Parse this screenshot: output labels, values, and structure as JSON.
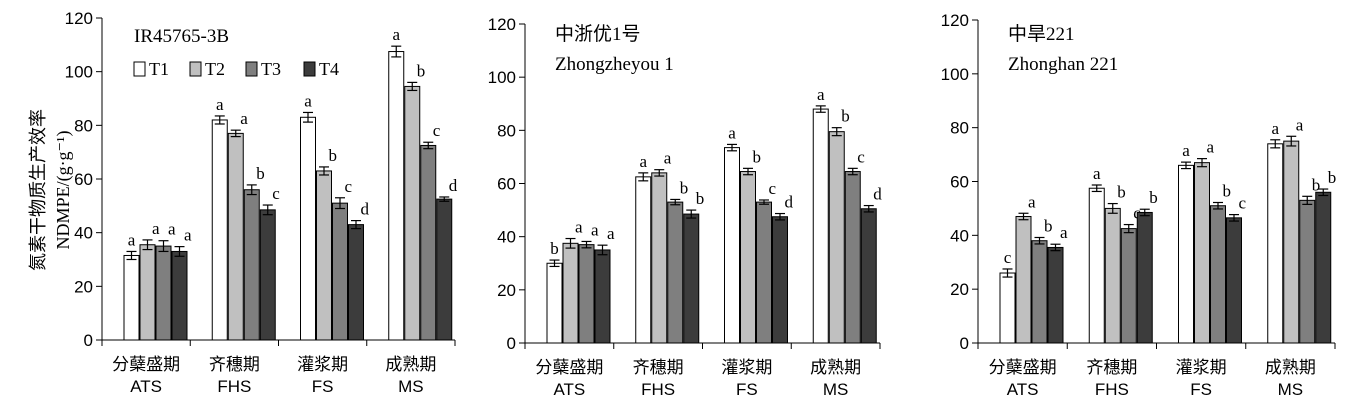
{
  "figure": {
    "y_axis_label_cn": "氮素干物质生产效率",
    "y_axis_label_en": "NDMPE/(g·g⁻¹)",
    "legend": [
      "T1",
      "T2",
      "T3",
      "T4"
    ],
    "colors": {
      "T1": "#ffffff",
      "T2": "#c0c0c0",
      "T3": "#7f7f7f",
      "T4": "#3c3c3c"
    }
  },
  "chart_data": [
    {
      "type": "bar",
      "title": "IR45765-3B",
      "subtitle": "",
      "categories_cn": [
        "分蘖盛期",
        "齐穗期",
        "灌浆期",
        "成熟期"
      ],
      "categories": [
        "ATS",
        "FHS",
        "FS",
        "MS"
      ],
      "ylim": [
        0,
        120
      ],
      "yticks": [
        0,
        20,
        40,
        60,
        80,
        100,
        120
      ],
      "series": [
        {
          "name": "T1",
          "values": [
            31.5,
            82,
            83,
            107.5
          ],
          "errors": [
            1.5,
            1.5,
            1.8,
            2.0
          ],
          "labels": [
            "a",
            "a",
            "a",
            "a"
          ]
        },
        {
          "name": "T2",
          "values": [
            35.5,
            77,
            63,
            94.5
          ],
          "errors": [
            1.8,
            1.2,
            1.5,
            1.5
          ],
          "labels": [
            "a",
            "a",
            "b",
            "b"
          ]
        },
        {
          "name": "T3",
          "values": [
            35,
            56,
            51,
            72.5
          ],
          "errors": [
            2.0,
            1.8,
            2.0,
            1.2
          ],
          "labels": [
            "a",
            "b",
            "c",
            "c"
          ]
        },
        {
          "name": "T4",
          "values": [
            33,
            48.5,
            43,
            52.5
          ],
          "errors": [
            1.8,
            1.8,
            1.5,
            0.8
          ],
          "labels": [
            "a",
            "c",
            "d",
            "d"
          ]
        }
      ]
    },
    {
      "type": "bar",
      "title": "中浙优1号",
      "subtitle": "Zhongzheyou 1",
      "categories_cn": [
        "分蘖盛期",
        "齐穗期",
        "灌浆期",
        "成熟期"
      ],
      "categories": [
        "ATS",
        "FHS",
        "FS",
        "MS"
      ],
      "ylim": [
        0,
        120
      ],
      "yticks": [
        0,
        20,
        40,
        60,
        80,
        100,
        120
      ],
      "series": [
        {
          "name": "T1",
          "values": [
            30,
            62.5,
            73.5,
            88
          ],
          "errors": [
            1.2,
            1.5,
            1.2,
            1.2
          ],
          "labels": [
            "b",
            "a",
            "a",
            "a"
          ]
        },
        {
          "name": "T2",
          "values": [
            37.5,
            64,
            64.5,
            79.5
          ],
          "errors": [
            1.8,
            1.2,
            1.2,
            1.5
          ],
          "labels": [
            "a",
            "a",
            "b",
            "b"
          ]
        },
        {
          "name": "T3",
          "values": [
            37,
            53,
            53,
            64.5
          ],
          "errors": [
            1.2,
            1.0,
            0.8,
            1.2
          ],
          "labels": [
            "a",
            "b",
            "c",
            "c"
          ]
        },
        {
          "name": "T4",
          "values": [
            35,
            48.5,
            47.5,
            50.5
          ],
          "errors": [
            1.8,
            1.5,
            1.2,
            1.2
          ],
          "labels": [
            "a",
            "b",
            "d",
            "d"
          ]
        }
      ]
    },
    {
      "type": "bar",
      "title": "中旱221",
      "subtitle": "Zhonghan 221",
      "categories_cn": [
        "分蘖盛期",
        "齐穗期",
        "灌浆期",
        "成熟期"
      ],
      "categories": [
        "ATS",
        "FHS",
        "FS",
        "MS"
      ],
      "ylim": [
        0,
        120
      ],
      "yticks": [
        0,
        20,
        40,
        60,
        80,
        100,
        120
      ],
      "series": [
        {
          "name": "T1",
          "values": [
            26,
            57.5,
            66,
            74
          ],
          "errors": [
            1.5,
            1.2,
            1.2,
            1.5
          ],
          "labels": [
            "c",
            "a",
            "a",
            "a"
          ]
        },
        {
          "name": "T2",
          "values": [
            47,
            50,
            67,
            75
          ],
          "errors": [
            1.2,
            1.8,
            1.5,
            1.8
          ],
          "labels": [
            "a",
            "b",
            "a",
            "a"
          ]
        },
        {
          "name": "T3",
          "values": [
            38,
            42.5,
            51,
            53
          ],
          "errors": [
            1.2,
            1.5,
            1.2,
            1.5
          ],
          "labels": [
            "b",
            "c",
            "b",
            "b"
          ]
        },
        {
          "name": "T4",
          "values": [
            35.5,
            48.5,
            46.5,
            56
          ],
          "errors": [
            1.2,
            1.2,
            1.2,
            1.2
          ],
          "labels": [
            "a",
            "b",
            "c",
            "b"
          ]
        }
      ]
    }
  ]
}
